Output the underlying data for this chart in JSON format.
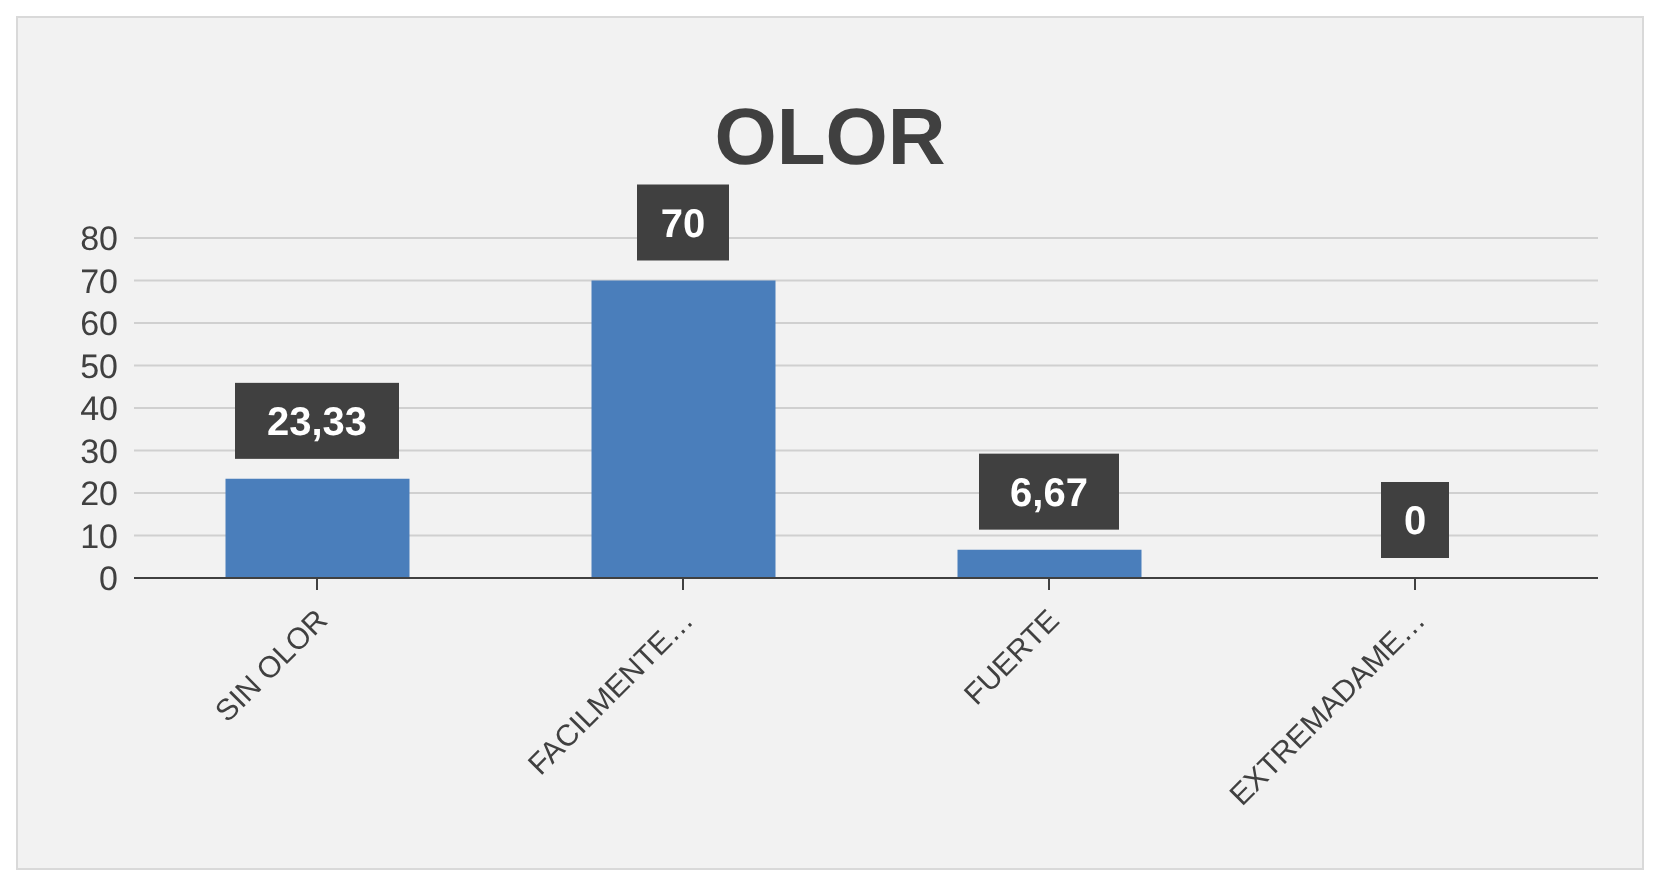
{
  "chart_data": {
    "type": "bar",
    "title": "OLOR",
    "categories": [
      "SIN OLOR",
      "FACILMENTE…",
      "FUERTE",
      "EXTREMADAME…"
    ],
    "values": [
      23.33,
      70,
      6.67,
      0
    ],
    "value_labels": [
      "23,33",
      "70",
      "6,67",
      "0"
    ],
    "color": "#4a7ebb",
    "ylim": [
      0,
      80
    ],
    "yticks": [
      0,
      10,
      20,
      30,
      40,
      50,
      60,
      70,
      80
    ],
    "grid": "y"
  }
}
